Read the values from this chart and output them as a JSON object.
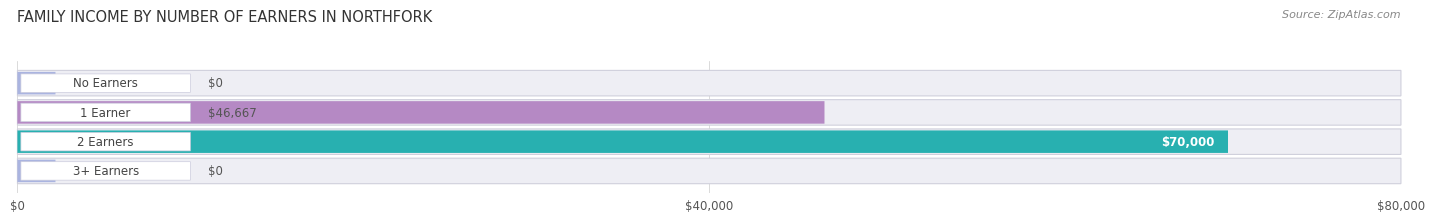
{
  "title": "FAMILY INCOME BY NUMBER OF EARNERS IN NORTHFORK",
  "source": "Source: ZipAtlas.com",
  "categories": [
    "No Earners",
    "1 Earner",
    "2 Earners",
    "3+ Earners"
  ],
  "values": [
    0,
    46667,
    70000,
    0
  ],
  "max_value": 80000,
  "bar_colors": [
    "#aab4e0",
    "#b589c4",
    "#28b0b0",
    "#aab4e0"
  ],
  "value_labels": [
    "$0",
    "$46,667",
    "$70,000",
    "$0"
  ],
  "value_label_inside": [
    false,
    false,
    true,
    false
  ],
  "value_label_color_inside": "#ffffff",
  "value_label_color_outside": "#555555",
  "xticks": [
    0,
    40000,
    80000
  ],
  "xtick_labels": [
    "$0",
    "$40,000",
    "$80,000"
  ],
  "title_fontsize": 10.5,
  "source_fontsize": 8,
  "label_fontsize": 8.5,
  "value_fontsize": 8.5,
  "tick_fontsize": 8.5,
  "background_color": "#ffffff",
  "row_bg_color": "#e8e8ee",
  "bar_track_color": "#e4e4ee"
}
